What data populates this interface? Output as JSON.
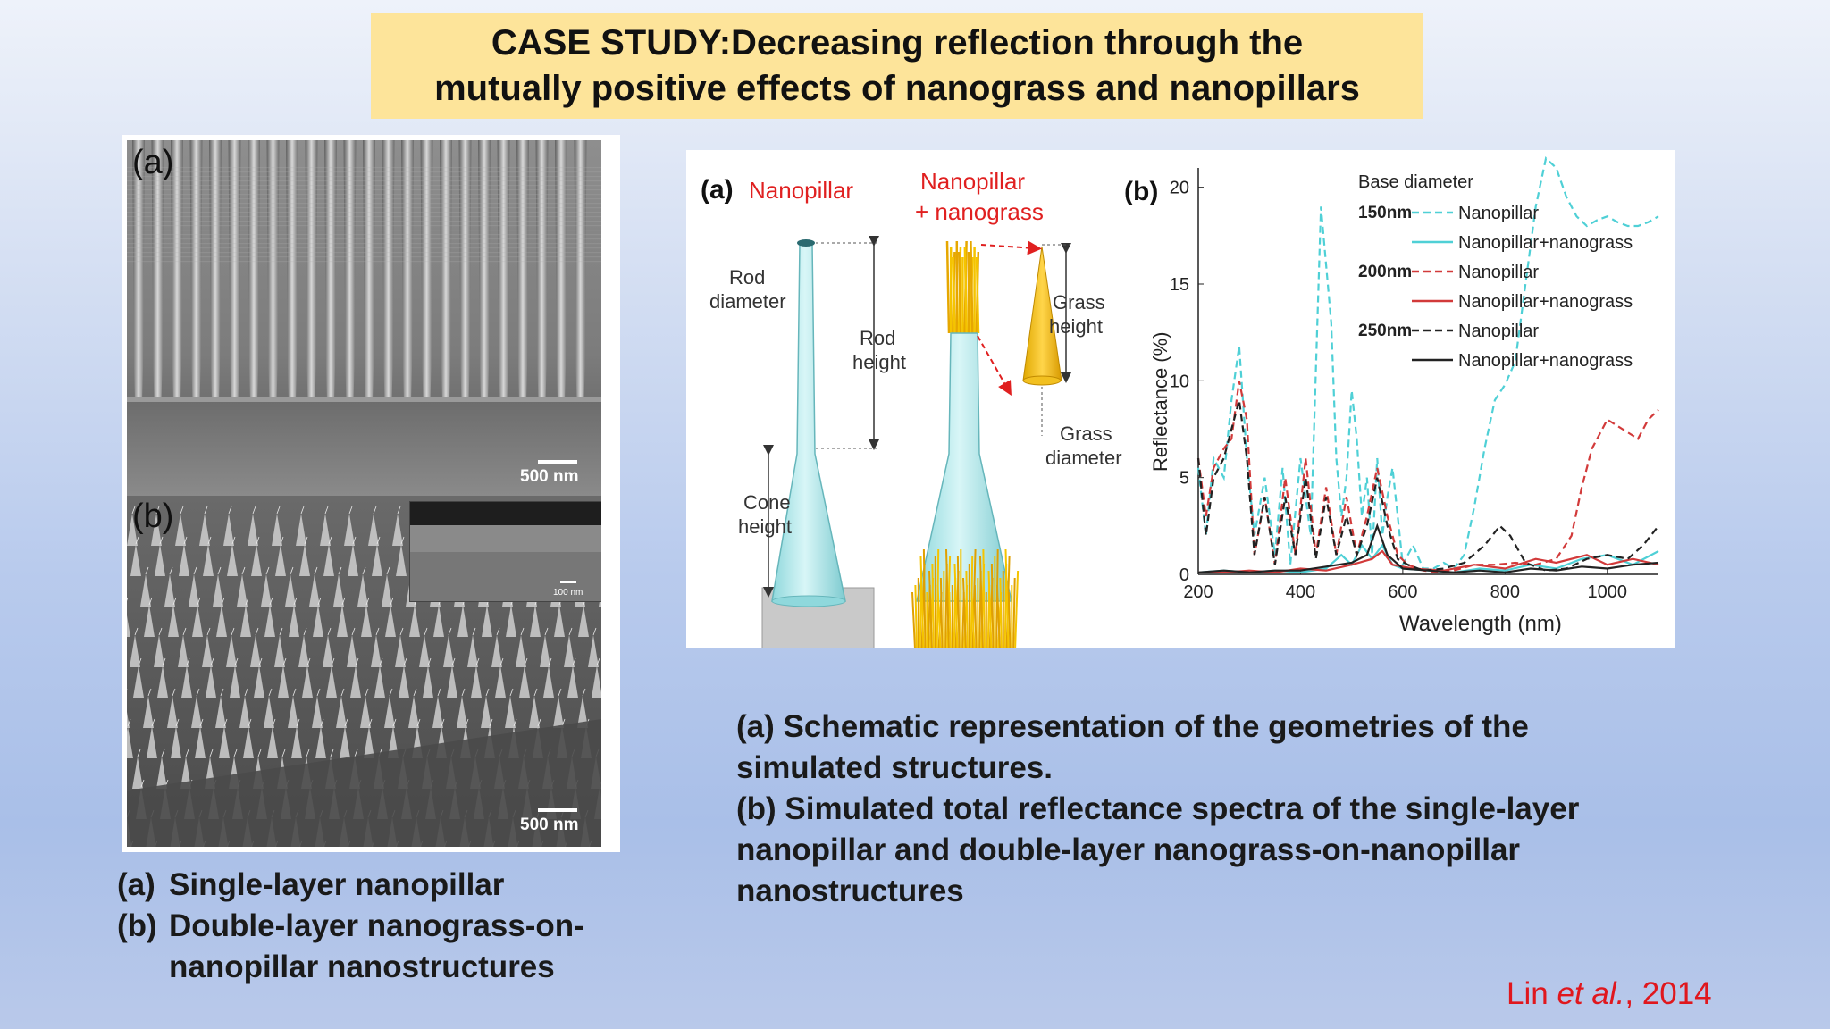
{
  "title": {
    "line1": "CASE STUDY:Decreasing reflection through the",
    "line2": "mutually positive effects of nanograss and nanopillars"
  },
  "sem": {
    "panel_a": {
      "letter": "(a)",
      "scale": "500 nm"
    },
    "panel_b": {
      "letter": "(b)",
      "scale": "500 nm",
      "inset_scale": "100 nm"
    }
  },
  "schematic": {
    "letter": "(a)",
    "nanopillar_title": "Nanopillar",
    "combo_title_1": "Nanopillar",
    "combo_title_2": "+ nanograss",
    "rod_diameter_1": "Rod",
    "rod_diameter_2": "diameter",
    "rod_height_1": "Rod",
    "rod_height_2": "height",
    "cone_height_1": "Cone",
    "cone_height_2": "height",
    "grass_height_1": "Grass",
    "grass_height_2": "height",
    "grass_diameter_1": "Grass",
    "grass_diameter_2": "diameter"
  },
  "chart_data": {
    "type": "line",
    "panel_letter": "(b)",
    "xlabel": "Wavelength (nm)",
    "ylabel": "Reflectance (%)",
    "xlim": [
      200,
      1100
    ],
    "ylim": [
      0,
      21
    ],
    "xticks": [
      200,
      400,
      600,
      800,
      1000
    ],
    "yticks": [
      0,
      5,
      10,
      15,
      20
    ],
    "legend_title": "Base diameter",
    "legend_position": "top-right",
    "legend_groups": [
      "150nm",
      "200nm",
      "250nm"
    ],
    "series": [
      {
        "name": "Nanopillar",
        "group": "150nm",
        "color": "#4fd0d6",
        "dash": true,
        "x": [
          200,
          215,
          230,
          250,
          265,
          280,
          295,
          310,
          330,
          350,
          365,
          380,
          400,
          420,
          440,
          460,
          470,
          480,
          490,
          500,
          510,
          520,
          530,
          540,
          550,
          560,
          570,
          580,
          590,
          600,
          620,
          640,
          660,
          680,
          700,
          720,
          740,
          760,
          780,
          800,
          820,
          840,
          860,
          880,
          900,
          920,
          940,
          960,
          980,
          1000,
          1020,
          1040,
          1060,
          1080,
          1100
        ],
        "y": [
          5.5,
          2,
          6,
          5,
          9,
          11.8,
          6,
          2,
          5,
          1,
          5.5,
          0.5,
          6,
          2,
          19,
          13,
          6,
          3,
          5,
          9.5,
          7,
          3,
          5,
          1,
          6,
          2,
          4,
          5.5,
          3,
          0.5,
          1.5,
          0.3,
          0.3,
          0.6,
          0.3,
          1,
          3.5,
          6.5,
          9,
          9.8,
          11,
          15,
          19,
          21.5,
          21,
          19.5,
          18.5,
          18,
          18.3,
          18.5,
          18.2,
          18,
          18,
          18.2,
          18.5
        ]
      },
      {
        "name": "Nanopillar+nanograss",
        "group": "150nm",
        "color": "#4fd0d6",
        "dash": false,
        "x": [
          200,
          250,
          300,
          350,
          400,
          450,
          480,
          500,
          520,
          540,
          560,
          580,
          600,
          650,
          700,
          750,
          800,
          850,
          900,
          950,
          1000,
          1050,
          1100
        ],
        "y": [
          0.1,
          0.2,
          0.1,
          0.2,
          0.1,
          0.3,
          1,
          0.5,
          1.5,
          0.8,
          1.5,
          0.5,
          0.3,
          0.2,
          0.1,
          0.3,
          0.2,
          0.5,
          0.3,
          0.8,
          1,
          0.5,
          1.2
        ]
      },
      {
        "name": "Nanopillar",
        "group": "200nm",
        "color": "#d23a3a",
        "dash": true,
        "x": [
          200,
          215,
          230,
          250,
          265,
          280,
          295,
          310,
          330,
          350,
          370,
          390,
          410,
          430,
          450,
          470,
          490,
          510,
          530,
          550,
          570,
          590,
          610,
          640,
          670,
          700,
          740,
          780,
          820,
          860,
          900,
          930,
          950,
          970,
          1000,
          1030,
          1060,
          1080,
          1100
        ],
        "y": [
          6,
          3,
          5.5,
          6.5,
          7,
          10,
          8,
          1,
          4,
          0.5,
          5,
          1,
          6,
          1,
          4.5,
          1,
          4,
          1,
          3,
          5.5,
          3,
          1,
          0.5,
          0.2,
          0.1,
          0.2,
          0.5,
          0.5,
          0.6,
          0.5,
          0.8,
          2,
          4.5,
          6.5,
          8,
          7.5,
          7,
          8,
          8.5
        ]
      },
      {
        "name": "Nanopillar+nanograss",
        "group": "200nm",
        "color": "#d23a3a",
        "dash": false,
        "x": [
          200,
          250,
          300,
          350,
          400,
          450,
          500,
          540,
          560,
          580,
          620,
          680,
          740,
          800,
          860,
          900,
          960,
          1000,
          1050,
          1100
        ],
        "y": [
          0.1,
          0.1,
          0.2,
          0.1,
          0.3,
          0.2,
          0.5,
          0.8,
          1.2,
          0.5,
          0.3,
          0.2,
          0.5,
          0.3,
          0.8,
          0.6,
          1,
          0.5,
          0.8,
          0.5
        ]
      },
      {
        "name": "Nanopillar",
        "group": "250nm",
        "color": "#222222",
        "dash": true,
        "x": [
          200,
          215,
          230,
          250,
          265,
          280,
          295,
          310,
          330,
          350,
          370,
          390,
          410,
          430,
          450,
          470,
          490,
          510,
          530,
          550,
          570,
          590,
          610,
          640,
          680,
          720,
          760,
          790,
          810,
          840,
          880,
          920,
          960,
          1000,
          1040,
          1070,
          1100
        ],
        "y": [
          6,
          2,
          5,
          6,
          7.5,
          9,
          6,
          1,
          4,
          0.5,
          4,
          1,
          5,
          0.8,
          4,
          1,
          3,
          1,
          2.5,
          5,
          2.5,
          0.8,
          0.5,
          0.2,
          0.3,
          0.6,
          1.5,
          2.5,
          2,
          0.6,
          0.2,
          0.3,
          0.8,
          1,
          0.8,
          1.5,
          2.5
        ]
      },
      {
        "name": "Nanopillar+nanograss",
        "group": "250nm",
        "color": "#222222",
        "dash": false,
        "x": [
          200,
          250,
          300,
          350,
          400,
          450,
          500,
          530,
          550,
          570,
          600,
          650,
          700,
          750,
          800,
          850,
          900,
          950,
          1000,
          1050,
          1100
        ],
        "y": [
          0.1,
          0.2,
          0.1,
          0.2,
          0.2,
          0.4,
          0.6,
          1,
          2.5,
          1,
          0.3,
          0.2,
          0.1,
          0.2,
          0.1,
          0.3,
          0.2,
          0.4,
          0.3,
          0.5,
          0.6
        ]
      }
    ]
  },
  "captions": {
    "left_a_marker": "(a)",
    "left_a_text": "Single-layer nanopillar",
    "left_b_marker": "(b)",
    "left_b_text_1": "Double-layer nanograss-on-",
    "left_b_text_2": "nanopillar nanostructures",
    "right_1": "(a) Schematic representation of the geometries of the",
    "right_2": "simulated structures.",
    "right_3": "(b) Simulated total reflectance spectra of the single-layer",
    "right_4": "nanopillar and double-layer nanograss-on-nanopillar",
    "right_5": "nanostructures"
  },
  "citation": {
    "author": "Lin ",
    "etal": "et al.",
    "year": ", 2014"
  }
}
